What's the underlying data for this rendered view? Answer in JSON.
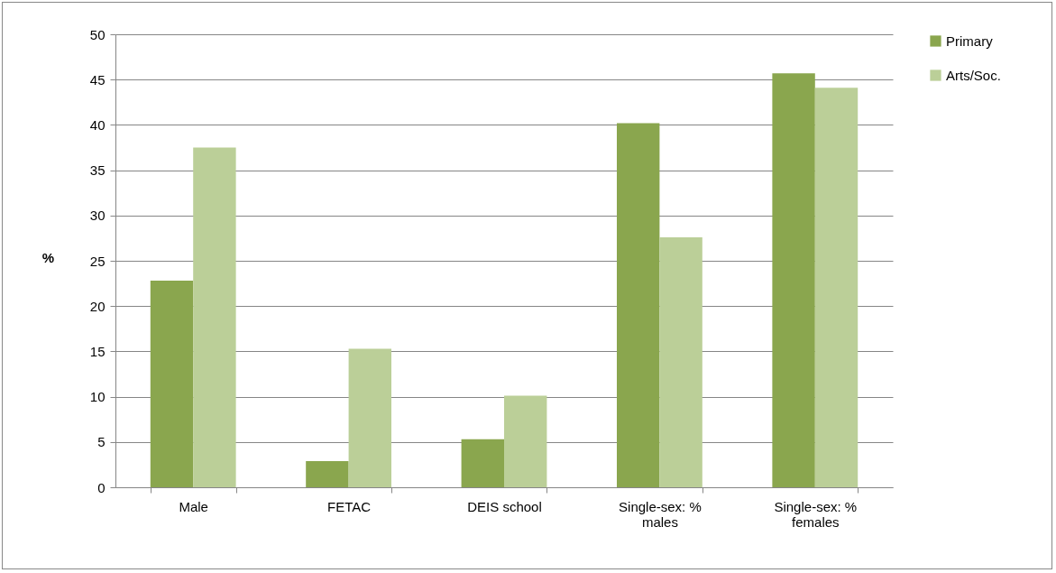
{
  "chart_data": {
    "type": "bar",
    "ylabel": "%",
    "categories": [
      "Male",
      "FETAC",
      "DEIS school",
      "Single-sex: % males",
      "Single-sex: % females"
    ],
    "series": [
      {
        "name": "Primary",
        "color": "#8aa64e",
        "values": [
          22.8,
          2.9,
          5.3,
          40.2,
          45.7
        ]
      },
      {
        "name": "Arts/Soc.",
        "color": "#bbcf98",
        "values": [
          37.5,
          15.3,
          10.1,
          27.6,
          44.1
        ]
      }
    ],
    "ylim": [
      0,
      50
    ],
    "yticks": [
      0,
      5,
      10,
      15,
      20,
      25,
      30,
      35,
      40,
      45,
      50
    ],
    "grid": "y",
    "legend": "right"
  }
}
